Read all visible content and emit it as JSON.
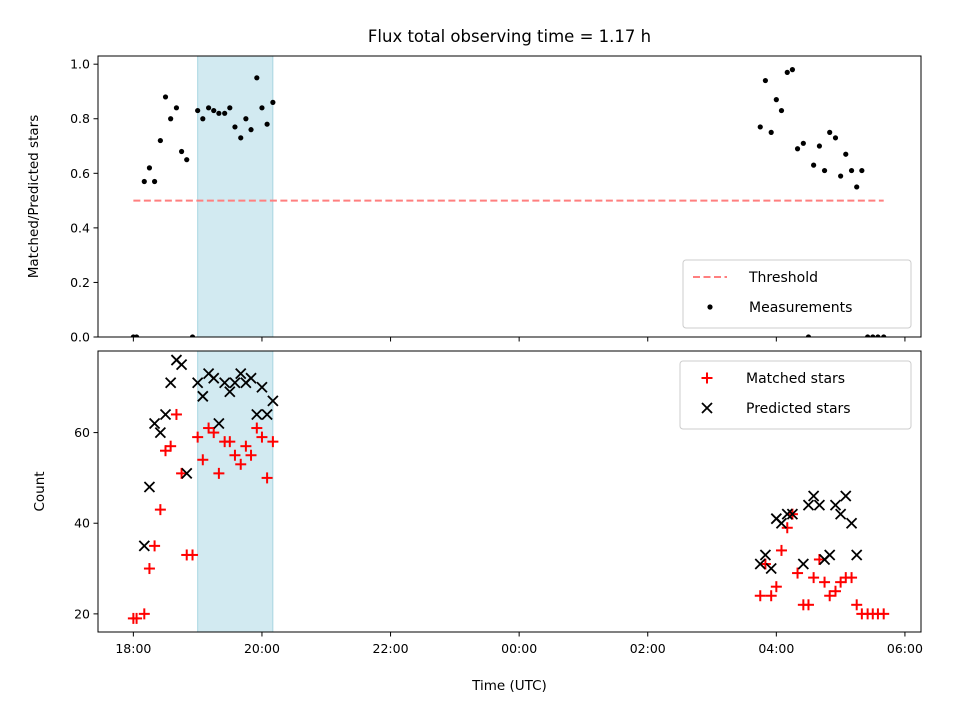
{
  "chart_data": [
    {
      "type": "scatter",
      "title": "Flux total observing time = 1.17 h",
      "xlabel": "",
      "ylabel": "Matched/Predicted stars",
      "ylim": [
        0,
        1.03
      ],
      "yticks": [
        0.0,
        0.2,
        0.4,
        0.6,
        0.8,
        1.0
      ],
      "ytick_labels": [
        "0.0",
        "0.2",
        "0.4",
        "0.6",
        "0.8",
        "1.0"
      ],
      "highlight_span": {
        "x": [
          19.0,
          20.17
        ],
        "color": "#add8e6"
      },
      "legend_position": "lower-right",
      "series": [
        {
          "name": "Threshold",
          "style": "dashed-line",
          "color": "#ff7f7f",
          "x": [
            18.0,
            29.67
          ],
          "y": [
            0.5,
            0.5
          ]
        },
        {
          "name": "Measurements",
          "style": "dot",
          "color": "#000000",
          "x": [
            18.0,
            18.05,
            18.17,
            18.25,
            18.33,
            18.42,
            18.5,
            18.58,
            18.67,
            18.75,
            18.83,
            18.92,
            19.0,
            19.08,
            19.17,
            19.25,
            19.33,
            19.42,
            19.5,
            19.58,
            19.67,
            19.75,
            19.83,
            19.92,
            20.0,
            20.08,
            20.17,
            27.75,
            27.83,
            27.92,
            28.0,
            28.08,
            28.17,
            28.25,
            28.33,
            28.42,
            28.5,
            28.58,
            28.67,
            28.75,
            28.83,
            28.92,
            29.0,
            29.08,
            29.17,
            29.25,
            29.33,
            29.42,
            29.5,
            29.58,
            29.67
          ],
          "y": [
            0.0,
            0.0,
            0.57,
            0.62,
            0.57,
            0.72,
            0.88,
            0.8,
            0.84,
            0.68,
            0.65,
            0.0,
            0.83,
            0.8,
            0.84,
            0.83,
            0.82,
            0.82,
            0.84,
            0.77,
            0.73,
            0.8,
            0.76,
            0.95,
            0.84,
            0.78,
            0.86,
            0.77,
            0.94,
            0.75,
            0.87,
            0.83,
            0.97,
            0.98,
            0.69,
            0.71,
            0.0,
            0.63,
            0.7,
            0.61,
            0.75,
            0.73,
            0.59,
            0.67,
            0.61,
            0.55,
            0.61,
            0.0,
            0.0,
            0.0,
            0.0
          ]
        }
      ]
    },
    {
      "type": "scatter",
      "title": "",
      "xlabel": "Time (UTC)",
      "ylabel": "Count",
      "xlim": [
        17.45,
        30.25
      ],
      "ylim": [
        16,
        78
      ],
      "xticks": [
        18,
        20,
        22,
        24,
        26,
        28,
        30
      ],
      "xtick_labels": [
        "18:00",
        "20:00",
        "22:00",
        "00:00",
        "02:00",
        "04:00",
        "06:00"
      ],
      "yticks": [
        20,
        40,
        60
      ],
      "ytick_labels": [
        "20",
        "40",
        "60"
      ],
      "highlight_span": {
        "x": [
          19.0,
          20.17
        ],
        "color": "#add8e6"
      },
      "legend_position": "upper-right",
      "series": [
        {
          "name": "Matched stars",
          "style": "plus",
          "color": "#ff0000",
          "x": [
            18.0,
            18.05,
            18.17,
            18.25,
            18.33,
            18.42,
            18.5,
            18.58,
            18.67,
            18.75,
            18.83,
            18.92,
            19.0,
            19.08,
            19.17,
            19.25,
            19.33,
            19.42,
            19.5,
            19.58,
            19.67,
            19.75,
            19.83,
            19.92,
            20.0,
            20.08,
            20.17,
            27.75,
            27.83,
            27.92,
            28.0,
            28.08,
            28.17,
            28.25,
            28.33,
            28.42,
            28.5,
            28.58,
            28.67,
            28.75,
            28.83,
            28.92,
            29.0,
            29.08,
            29.17,
            29.25,
            29.33,
            29.42,
            29.5,
            29.58,
            29.67
          ],
          "y": [
            19,
            19,
            20,
            30,
            35,
            43,
            56,
            57,
            64,
            51,
            33,
            33,
            59,
            54,
            61,
            60,
            51,
            58,
            58,
            55,
            53,
            57,
            55,
            61,
            59,
            50,
            58,
            24,
            31,
            24,
            26,
            34,
            39,
            42,
            29,
            22,
            22,
            28,
            32,
            27,
            24,
            25,
            27,
            28,
            28,
            22,
            20,
            20,
            20,
            20,
            20
          ]
        },
        {
          "name": "Predicted stars",
          "style": "x",
          "color": "#000000",
          "x": [
            18.17,
            18.25,
            18.33,
            18.42,
            18.5,
            18.58,
            18.67,
            18.75,
            18.83,
            19.0,
            19.08,
            19.17,
            19.25,
            19.33,
            19.42,
            19.5,
            19.58,
            19.67,
            19.75,
            19.83,
            19.92,
            20.0,
            20.08,
            20.17,
            27.75,
            27.83,
            27.92,
            28.0,
            28.08,
            28.17,
            28.25,
            28.42,
            28.5,
            28.58,
            28.67,
            28.75,
            28.83,
            28.92,
            29.0,
            29.08,
            29.17,
            29.25
          ],
          "y": [
            35,
            48,
            62,
            60,
            64,
            71,
            76,
            75,
            51,
            71,
            68,
            73,
            72,
            62,
            71,
            69,
            71,
            73,
            71,
            72,
            64,
            70,
            64,
            67,
            31,
            33,
            30,
            41,
            40,
            42,
            42,
            31,
            44,
            46,
            44,
            32,
            33,
            44,
            42,
            46,
            40,
            33
          ]
        }
      ]
    }
  ]
}
